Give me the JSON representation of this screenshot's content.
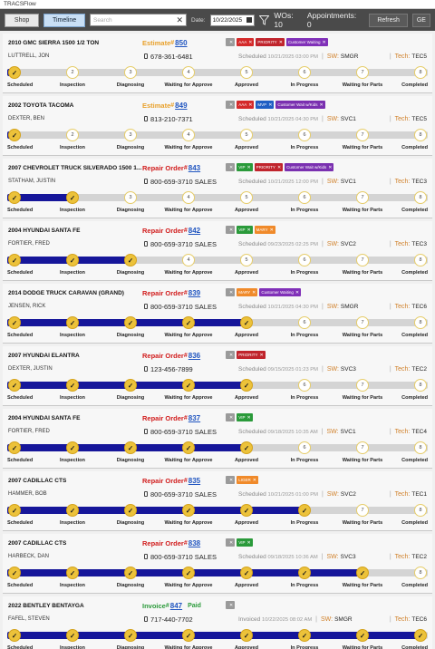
{
  "window_title": "TRACSFlow",
  "toolbar": {
    "shop_label": "Shop",
    "timeline_label": "Timeline",
    "search_placeholder": "Search",
    "date_label": "Date:",
    "date_value": "10/22/2025",
    "wo_count": "WOs: 10",
    "appointments": "Appointments: 0",
    "refresh_label": "Refresh",
    "ge_label": "GE"
  },
  "step_labels": [
    "Scheduled",
    "Inspection",
    "Diagnosing",
    "Waiting for Approve",
    "Approved",
    "In Progress",
    "Waiting for Parts",
    "Completed"
  ],
  "colors": {
    "estimate": "#e8a02a",
    "repair_order": "#d11c1c",
    "invoice": "#2a9a3a",
    "progress_fill": "#16169a",
    "step_done": "#ecc23a",
    "toolbar": "#4a4a4a"
  },
  "orders": [
    {
      "vehicle": "2010 GMC SIERRA 1500 1/2 TON",
      "type": "Estimate",
      "type_color": "#e8a02a",
      "number": "850",
      "paid": "",
      "customer": "LUTTRELL, JON",
      "phone": "678-361-6481",
      "sched_label": "Scheduled",
      "sched_date": "10/21/2025 03:00 PM",
      "sw": "SMGR",
      "tech": "TEC5",
      "tags": [
        {
          "text": "",
          "color": "#9a9a9a"
        },
        {
          "text": "AAA",
          "color": "#d42a2a"
        },
        {
          "text": "PRIORITY",
          "color": "#c0242c"
        },
        {
          "text": "Customer Waiting",
          "color": "#8030b8"
        }
      ],
      "fill": 0,
      "done": 1
    },
    {
      "vehicle": "2002 TOYOTA TACOMA",
      "type": "Estimate",
      "type_color": "#e8a02a",
      "number": "849",
      "paid": "",
      "customer": "DEXTER, BEN",
      "phone": "813-210-7371",
      "sched_label": "Scheduled",
      "sched_date": "10/21/2025 04:30 PM",
      "sw": "SVC1",
      "tech": "TEC5",
      "tags": [
        {
          "text": "",
          "color": "#9a9a9a"
        },
        {
          "text": "AAA",
          "color": "#d42a2a"
        },
        {
          "text": "MVP",
          "color": "#1f5fc4"
        },
        {
          "text": "Customer Wait w/Kids",
          "color": "#7a30b0"
        }
      ],
      "fill": 0,
      "done": 1
    },
    {
      "vehicle": "2007 CHEVROLET TRUCK SILVERADO 1500 1...",
      "type": "Repair Order",
      "type_color": "#d11c1c",
      "number": "843",
      "paid": "",
      "customer": "STATHAM, JUSTIN",
      "phone": "800-659-3710 SALES",
      "sched_label": "Scheduled",
      "sched_date": "10/21/2025 12:00 PM",
      "sw": "SVC1",
      "tech": "TEC3",
      "tags": [
        {
          "text": "",
          "color": "#9a9a9a"
        },
        {
          "text": "VIP",
          "color": "#2a9a3a"
        },
        {
          "text": "PRIORITY",
          "color": "#c0242c"
        },
        {
          "text": "Customer Wait w/Kids",
          "color": "#7a30b0"
        }
      ],
      "fill": 0.1429,
      "done": 2
    },
    {
      "vehicle": "2004 HYUNDAI SANTA FE",
      "type": "Repair Order",
      "type_color": "#d11c1c",
      "number": "842",
      "paid": "",
      "customer": "FORTIER, FRED",
      "phone": "800-659-3710 SALES",
      "sched_label": "Scheduled",
      "sched_date": "09/23/2025 02:25 PM",
      "sw": "SVC2",
      "tech": "TEC3",
      "tags": [
        {
          "text": "",
          "color": "#9a9a9a"
        },
        {
          "text": "VIP",
          "color": "#2a9a3a"
        },
        {
          "text": "MARY",
          "color": "#f08a2a"
        }
      ],
      "fill": 0.2857,
      "done": 3
    },
    {
      "vehicle": "2014 DODGE TRUCK CARAVAN (GRAND)",
      "type": "Repair Order",
      "type_color": "#d11c1c",
      "number": "839",
      "paid": "",
      "customer": "JENSEN, RICK",
      "phone": "800-659-3710 SALES",
      "sched_label": "Scheduled",
      "sched_date": "10/21/2025 04:30 PM",
      "sw": "SMGR",
      "tech": "TEC6",
      "tags": [
        {
          "text": "",
          "color": "#9a9a9a"
        },
        {
          "text": "MARY",
          "color": "#f08a2a"
        },
        {
          "text": "Customer Waiting",
          "color": "#8030b8"
        }
      ],
      "fill": 0.5714,
      "done": 5
    },
    {
      "vehicle": "2007 HYUNDAI ELANTRA",
      "type": "Repair Order",
      "type_color": "#d11c1c",
      "number": "836",
      "paid": "",
      "customer": "DEXTER, JUSTIN",
      "phone": "123-456-7899",
      "sched_label": "Scheduled",
      "sched_date": "09/15/2025 01:23 PM",
      "sw": "SVC3",
      "tech": "TEC2",
      "tags": [
        {
          "text": "",
          "color": "#9a9a9a"
        },
        {
          "text": "PRIORITY",
          "color": "#c0242c"
        }
      ],
      "fill": 0.5714,
      "done": 5
    },
    {
      "vehicle": "2004 HYUNDAI SANTA FE",
      "type": "Repair Order",
      "type_color": "#d11c1c",
      "number": "837",
      "paid": "",
      "customer": "FORTIER, FRED",
      "phone": "800-659-3710 SALES",
      "sched_label": "Scheduled",
      "sched_date": "09/18/2025 10:35 AM",
      "sw": "SVC1",
      "tech": "TEC4",
      "tags": [
        {
          "text": "",
          "color": "#9a9a9a"
        },
        {
          "text": "VIP",
          "color": "#2a9a3a"
        }
      ],
      "fill": 0.5714,
      "done": 5
    },
    {
      "vehicle": "2007 CADILLAC CTS",
      "type": "Repair Order",
      "type_color": "#d11c1c",
      "number": "835",
      "paid": "",
      "customer": "HAMMER, BOB",
      "phone": "800-659-3710 SALES",
      "sched_label": "Scheduled",
      "sched_date": "10/21/2025 01:00 PM",
      "sw": "SVC2",
      "tech": "TEC1",
      "tags": [
        {
          "text": "",
          "color": "#9a9a9a"
        },
        {
          "text": "LIGER",
          "color": "#f08a2a"
        }
      ],
      "fill": 0.7143,
      "done": 6
    },
    {
      "vehicle": "2007 CADILLAC CTS",
      "type": "Repair Order",
      "type_color": "#d11c1c",
      "number": "838",
      "paid": "",
      "customer": "HARBECK, DAN",
      "phone": "800-659-3710 SALES",
      "sched_label": "Scheduled",
      "sched_date": "09/18/2025 10:36 AM",
      "sw": "SVC3",
      "tech": "TEC2",
      "tags": [
        {
          "text": "",
          "color": "#9a9a9a"
        },
        {
          "text": "VIP",
          "color": "#2a9a3a"
        }
      ],
      "fill": 0.8571,
      "done": 7
    },
    {
      "vehicle": "2022 BENTLEY BENTAYGA",
      "type": "Invoice",
      "type_color": "#2a9a3a",
      "number": "847",
      "paid": "Paid",
      "customer": "FAFEL, STEVEN",
      "phone": "717-440-7702",
      "sched_label": "Invoiced",
      "sched_date": "10/22/2025 08:02 AM",
      "sw": "SMGR",
      "tech": "TEC6",
      "tags": [
        {
          "text": "",
          "color": "#9a9a9a"
        }
      ],
      "fill": 1,
      "done": 8
    }
  ]
}
